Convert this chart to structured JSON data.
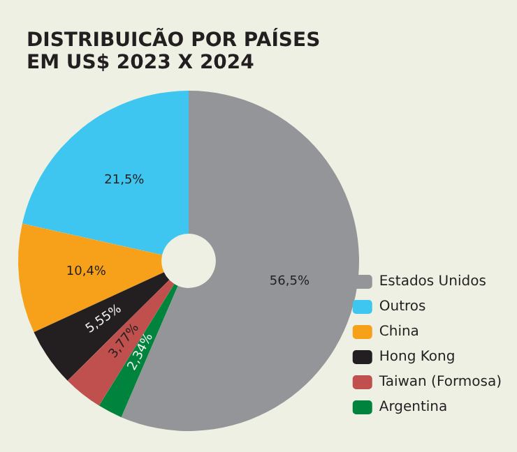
{
  "chart_data": {
    "type": "donut",
    "title": "DISTRIBUICÃO POR PAÍSES\nEM US$ 2023 X 2024",
    "categories": [
      "Estados Unidos",
      "Outros",
      "China",
      "Hong Kong",
      "Taiwan (Formosa)",
      "Argentina"
    ],
    "values": [
      56.5,
      21.5,
      10.4,
      5.55,
      3.77,
      2.34
    ],
    "colors": [
      "#939598",
      "#3ec6f0",
      "#f7a11a",
      "#231f20",
      "#c0504d",
      "#00843d"
    ],
    "value_labels": [
      "56,5%",
      "21,5%",
      "10,4%",
      "5,55%",
      "3,77%",
      "2,34%"
    ],
    "legend": "bottom right"
  }
}
